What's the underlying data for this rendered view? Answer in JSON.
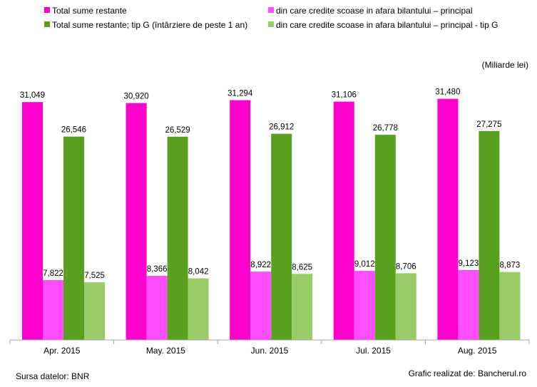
{
  "chart_data": {
    "type": "bar",
    "categories": [
      "Apr. 2015",
      "May. 2015",
      "Jun. 2015",
      "Jul. 2015",
      "Aug. 2015"
    ],
    "series": [
      {
        "name": "Total sume restante",
        "color": "#ff00cc",
        "values": [
          31.049,
          30.92,
          31.294,
          31.106,
          31.48
        ],
        "labels": [
          "31,049",
          "30,920",
          "31,294",
          "31,106",
          "31,480"
        ]
      },
      {
        "name": "din care credite scoase in afara bilantului – principal",
        "color": "#ff4dff",
        "values": [
          7.822,
          8.366,
          8.922,
          9.012,
          9.123
        ],
        "labels": [
          "7,822",
          "8,366",
          "8,922",
          "9,012",
          "9,123"
        ]
      },
      {
        "name": "Total sume restante; tip G (întârziere de peste 1 an)",
        "color": "#59a01f",
        "values": [
          26.546,
          26.529,
          26.912,
          26.778,
          27.275
        ],
        "labels": [
          "26,546",
          "26,529",
          "26,912",
          "26,778",
          "27,275"
        ]
      },
      {
        "name": "din care credite scoase in afara bilantului – principal - tip G",
        "color": "#99cc66",
        "values": [
          7.525,
          8.042,
          8.625,
          8.706,
          8.873
        ],
        "labels": [
          "7,525",
          "8,042",
          "8,625",
          "8,706",
          "8,873"
        ]
      }
    ],
    "unit_label": "(Miliarde lei)",
    "ylim": [
      0,
      36
    ],
    "legend_position": "top",
    "grid": false
  },
  "footer": {
    "source": "Sursa datelor: BNR",
    "credit": "Grafic realizat de: Bancherul.ro"
  }
}
